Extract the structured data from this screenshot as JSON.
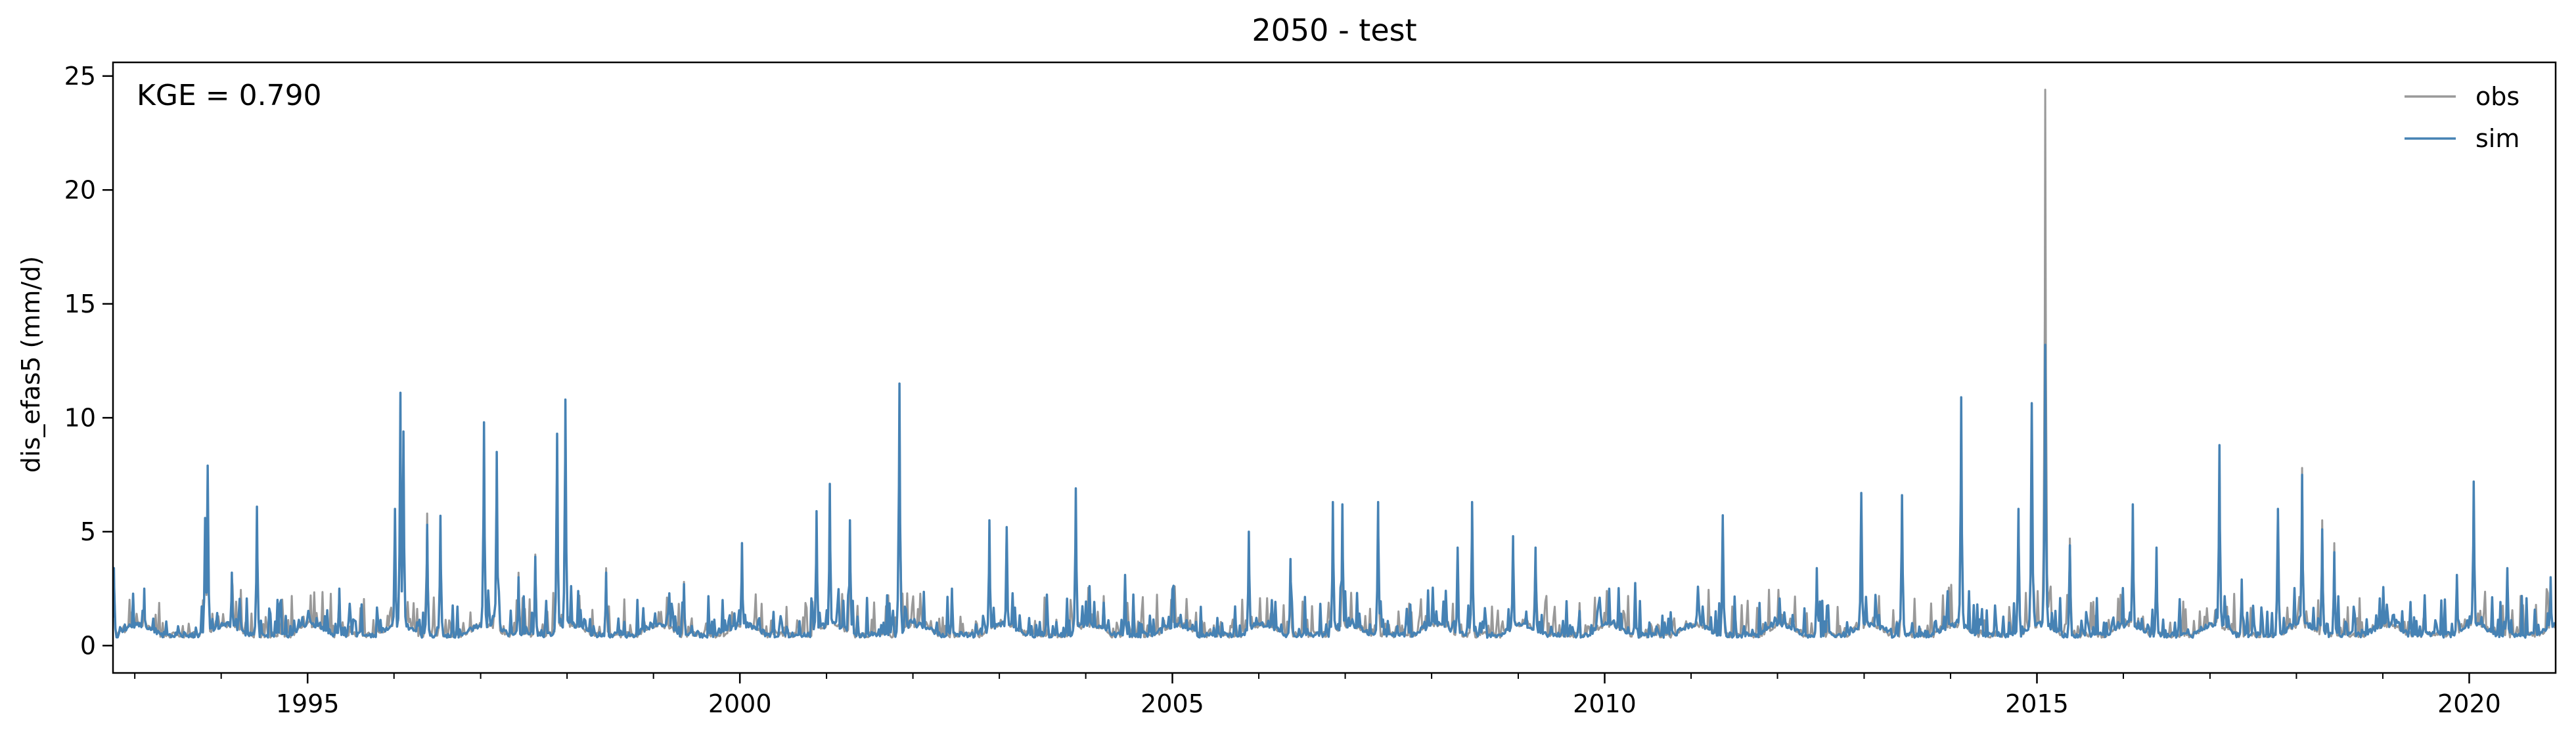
{
  "chart_data": {
    "type": "line",
    "title": "2050 - test",
    "xlabel": "",
    "ylabel": "dis_efas5 (mm/d)",
    "annotation": "KGE = 0.790",
    "xlim": [
      "1992-10-01",
      "2020-12-31"
    ],
    "ylim": [
      -1.2,
      25.6
    ],
    "x_ticks": [
      {
        "date": "1995-01-01",
        "label": "1995"
      },
      {
        "date": "2000-01-01",
        "label": "2000"
      },
      {
        "date": "2005-01-01",
        "label": "2005"
      },
      {
        "date": "2010-01-01",
        "label": "2010"
      },
      {
        "date": "2015-01-01",
        "label": "2015"
      },
      {
        "date": "2020-01-01",
        "label": "2020"
      }
    ],
    "y_ticks": [
      0,
      5,
      10,
      15,
      20,
      25
    ],
    "grid": false,
    "legend_position": "top-right",
    "series": [
      {
        "name": "obs",
        "color": "#999999",
        "peaks": [
          [
            "1992-10-05",
            3.2
          ],
          [
            "1993-02-10",
            2.3
          ],
          [
            "1993-10-25",
            5.2
          ],
          [
            "1993-11-05",
            7.5
          ],
          [
            "1994-02-15",
            3.0
          ],
          [
            "1994-06-01",
            5.8
          ],
          [
            "1995-05-15",
            2.4
          ],
          [
            "1996-01-05",
            5.8
          ],
          [
            "1996-01-28",
            10.8
          ],
          [
            "1996-02-10",
            9.0
          ],
          [
            "1996-05-20",
            5.8
          ],
          [
            "1996-07-15",
            5.6
          ],
          [
            "1997-01-15",
            9.6
          ],
          [
            "1997-03-10",
            8.4
          ],
          [
            "1997-06-10",
            3.2
          ],
          [
            "1997-08-20",
            4.0
          ],
          [
            "1997-11-20",
            9.2
          ],
          [
            "1997-12-25",
            10.6
          ],
          [
            "1998-06-15",
            3.4
          ],
          [
            "1999-05-10",
            2.8
          ],
          [
            "2000-01-10",
            4.2
          ],
          [
            "2000-11-20",
            5.5
          ],
          [
            "2001-01-15",
            6.8
          ],
          [
            "2001-04-10",
            5.2
          ],
          [
            "2001-11-05",
            11.2
          ],
          [
            "2002-06-15",
            2.4
          ],
          [
            "2002-11-20",
            5.3
          ],
          [
            "2003-02-01",
            5.0
          ],
          [
            "2003-11-20",
            6.6
          ],
          [
            "2004-06-15",
            3.0
          ],
          [
            "2005-11-20",
            5.0
          ],
          [
            "2006-05-15",
            3.6
          ],
          [
            "2006-11-10",
            6.1
          ],
          [
            "2006-12-20",
            6.0
          ],
          [
            "2007-05-20",
            6.0
          ],
          [
            "2008-04-20",
            4.1
          ],
          [
            "2008-06-20",
            6.0
          ],
          [
            "2008-12-10",
            4.6
          ],
          [
            "2009-03-15",
            4.0
          ],
          [
            "2010-05-10",
            2.6
          ],
          [
            "2011-05-15",
            5.2
          ],
          [
            "2012-06-15",
            3.2
          ],
          [
            "2012-12-20",
            6.4
          ],
          [
            "2013-06-10",
            6.6
          ],
          [
            "2014-02-15",
            10.6
          ],
          [
            "2014-10-15",
            5.8
          ],
          [
            "2014-12-10",
            10.2
          ],
          [
            "2015-02-05",
            24.4
          ],
          [
            "2015-05-20",
            4.7
          ],
          [
            "2016-02-10",
            5.9
          ],
          [
            "2016-05-20",
            4.0
          ],
          [
            "2017-02-10",
            8.6
          ],
          [
            "2017-05-15",
            2.8
          ],
          [
            "2017-10-15",
            5.7
          ],
          [
            "2018-01-25",
            7.8
          ],
          [
            "2018-04-20",
            5.5
          ],
          [
            "2018-06-10",
            4.5
          ],
          [
            "2019-11-10",
            3.0
          ],
          [
            "2020-01-20",
            7.0
          ],
          [
            "2020-06-10",
            3.2
          ],
          [
            "2020-12-10",
            2.8
          ]
        ]
      },
      {
        "name": "sim",
        "color": "#4682b4",
        "peaks": [
          [
            "1992-10-05",
            3.4
          ],
          [
            "1993-02-10",
            2.5
          ],
          [
            "1993-10-25",
            5.6
          ],
          [
            "1993-11-05",
            7.9
          ],
          [
            "1994-02-15",
            3.2
          ],
          [
            "1994-06-01",
            6.1
          ],
          [
            "1995-05-15",
            2.5
          ],
          [
            "1996-01-05",
            6.0
          ],
          [
            "1996-01-28",
            11.1
          ],
          [
            "1996-02-10",
            9.4
          ],
          [
            "1996-05-20",
            5.3
          ],
          [
            "1996-07-15",
            5.7
          ],
          [
            "1997-01-15",
            9.8
          ],
          [
            "1997-03-10",
            8.5
          ],
          [
            "1997-06-10",
            3.0
          ],
          [
            "1997-08-20",
            3.9
          ],
          [
            "1997-11-20",
            9.3
          ],
          [
            "1997-12-25",
            10.8
          ],
          [
            "1998-06-15",
            3.2
          ],
          [
            "1999-05-10",
            2.7
          ],
          [
            "2000-01-10",
            4.5
          ],
          [
            "2000-11-20",
            5.9
          ],
          [
            "2001-01-15",
            7.1
          ],
          [
            "2001-04-10",
            5.5
          ],
          [
            "2001-11-05",
            11.5
          ],
          [
            "2002-06-15",
            2.5
          ],
          [
            "2002-11-20",
            5.5
          ],
          [
            "2003-02-01",
            5.2
          ],
          [
            "2003-11-20",
            6.9
          ],
          [
            "2004-06-15",
            3.1
          ],
          [
            "2005-11-20",
            5.0
          ],
          [
            "2006-05-15",
            3.8
          ],
          [
            "2006-11-10",
            6.3
          ],
          [
            "2006-12-20",
            6.2
          ],
          [
            "2007-05-20",
            6.3
          ],
          [
            "2008-04-20",
            4.3
          ],
          [
            "2008-06-20",
            6.3
          ],
          [
            "2008-12-10",
            4.8
          ],
          [
            "2009-03-15",
            4.3
          ],
          [
            "2010-05-10",
            2.7
          ],
          [
            "2011-05-15",
            5.5
          ],
          [
            "2012-06-15",
            3.4
          ],
          [
            "2012-12-20",
            6.7
          ],
          [
            "2013-06-10",
            6.6
          ],
          [
            "2014-02-15",
            10.9
          ],
          [
            "2014-10-15",
            6.0
          ],
          [
            "2014-12-10",
            10.6
          ],
          [
            "2015-02-05",
            13.2
          ],
          [
            "2015-05-20",
            4.4
          ],
          [
            "2016-02-10",
            6.2
          ],
          [
            "2016-05-20",
            4.3
          ],
          [
            "2017-02-10",
            8.8
          ],
          [
            "2017-05-15",
            2.9
          ],
          [
            "2017-10-15",
            6.0
          ],
          [
            "2018-01-25",
            7.5
          ],
          [
            "2018-04-20",
            5.1
          ],
          [
            "2018-06-10",
            4.1
          ],
          [
            "2019-11-10",
            3.1
          ],
          [
            "2020-01-20",
            7.2
          ],
          [
            "2020-06-10",
            3.4
          ],
          [
            "2020-12-10",
            3.0
          ]
        ]
      }
    ]
  }
}
